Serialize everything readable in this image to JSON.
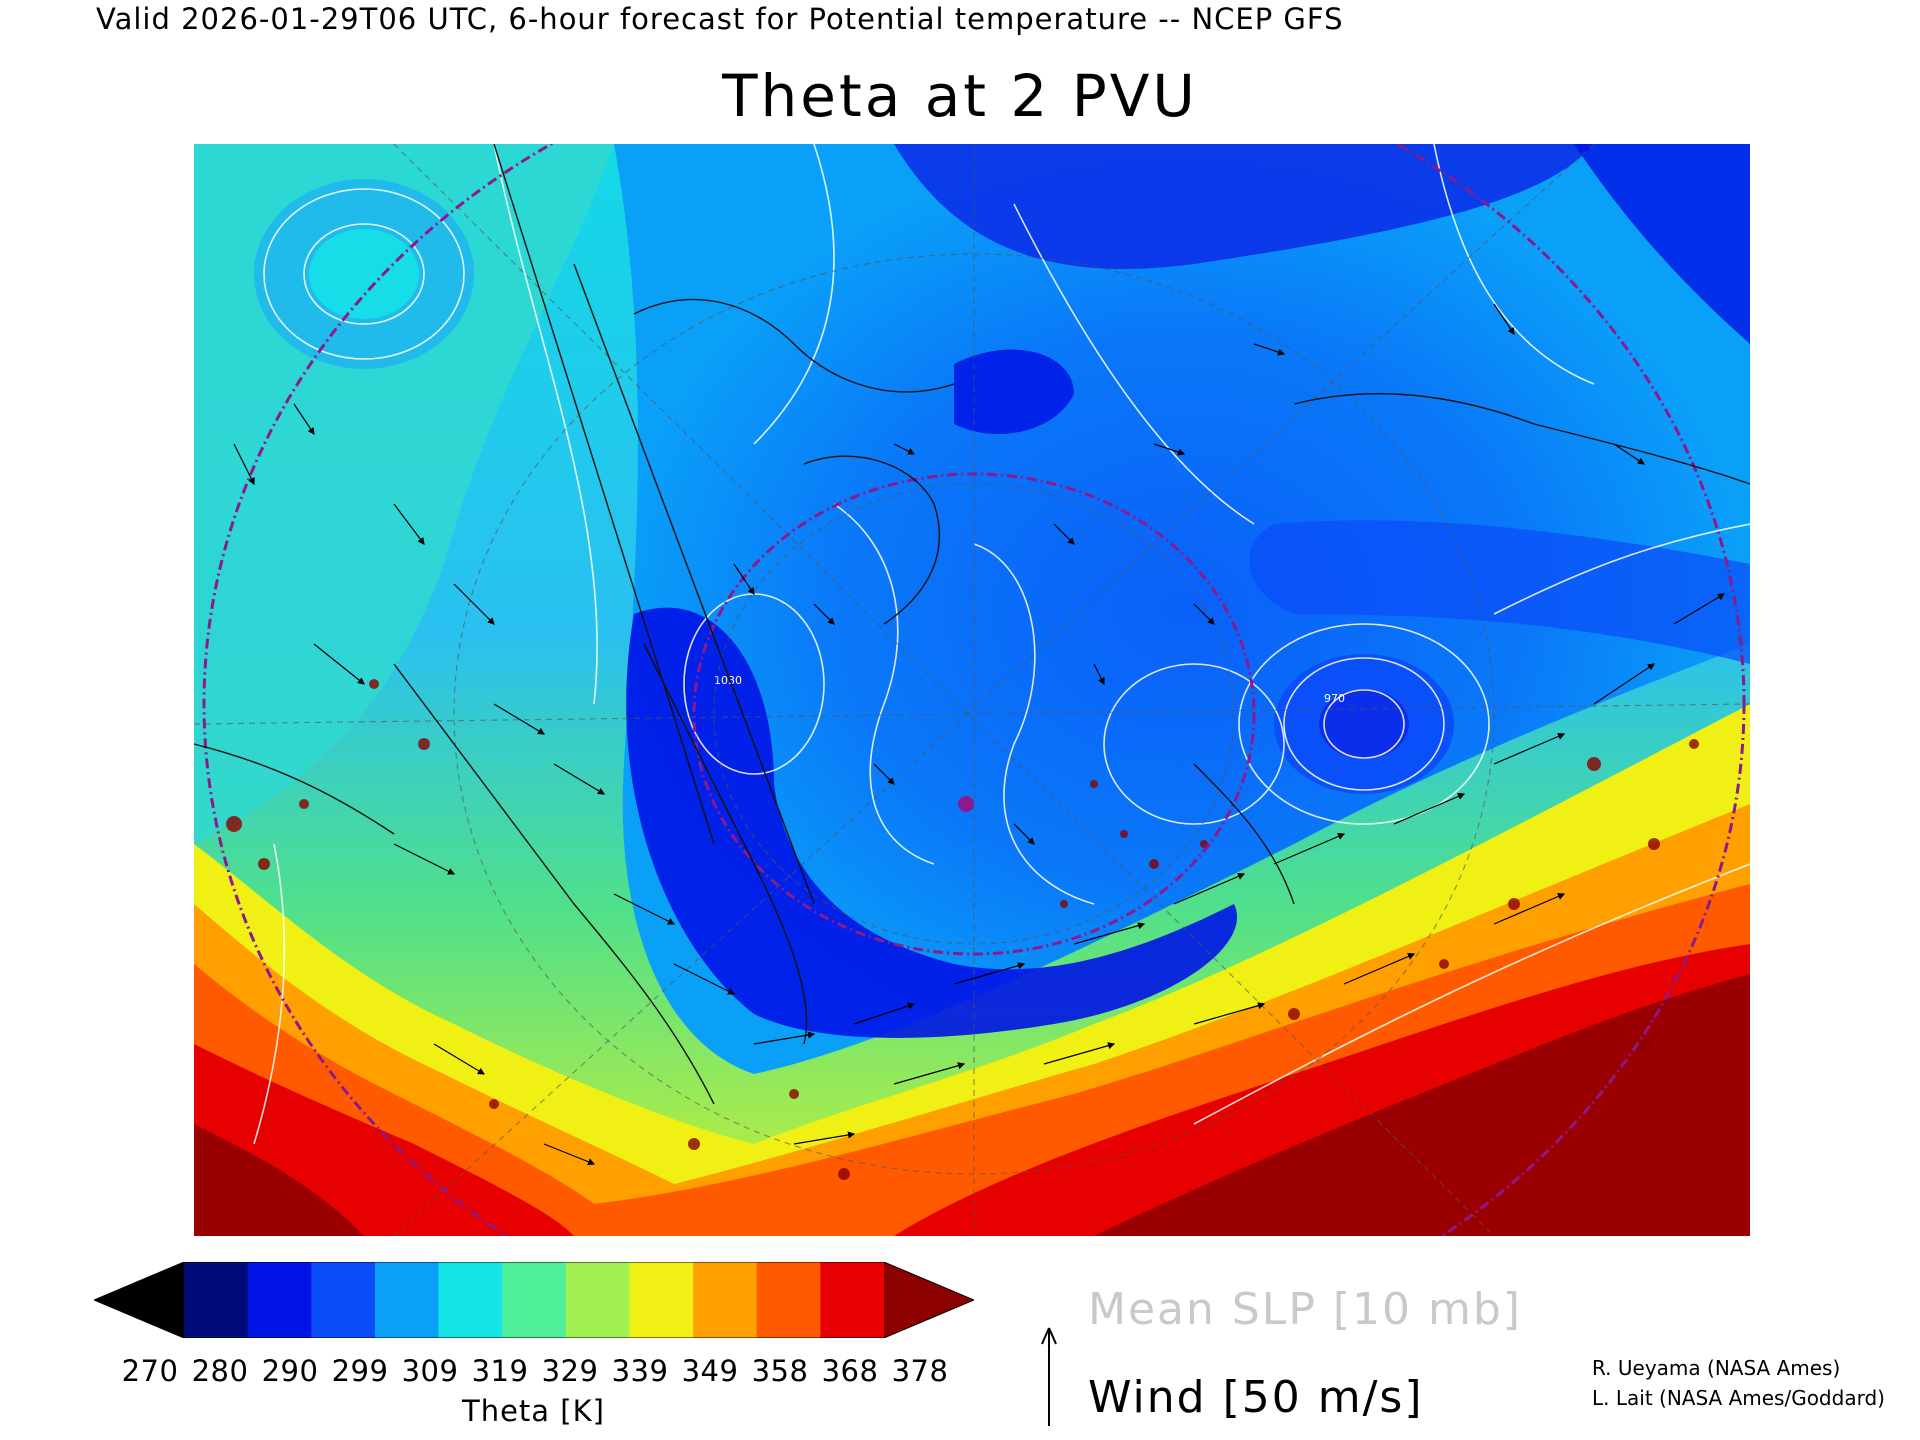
{
  "header": {
    "valid_line": "Valid 2026-01-29T06 UTC, 6-hour forecast for Potential temperature -- NCEP GFS",
    "title": "Theta at 2 PVU"
  },
  "colorbar": {
    "label": "Theta [K]",
    "ticks": [
      "270",
      "280",
      "290",
      "299",
      "309",
      "319",
      "329",
      "339",
      "349",
      "358",
      "368",
      "378"
    ],
    "colors": [
      "#000000",
      "#000a78",
      "#0014e6",
      "#0a4cf8",
      "#0aa0f8",
      "#14e6e6",
      "#50f09a",
      "#a0f050",
      "#f0f014",
      "#ffa000",
      "#ff5a00",
      "#e60000",
      "#8c0000"
    ]
  },
  "legend": {
    "slp_label": "Mean SLP [10 mb]",
    "wind_label": "Wind [50 m/s]"
  },
  "credits": {
    "line1": "R. Ueyama (NASA Ames)",
    "line2": "L. Lait (NASA Ames/Goddard)"
  },
  "map": {
    "pressure_labels": [
      "1030",
      "970"
    ]
  }
}
